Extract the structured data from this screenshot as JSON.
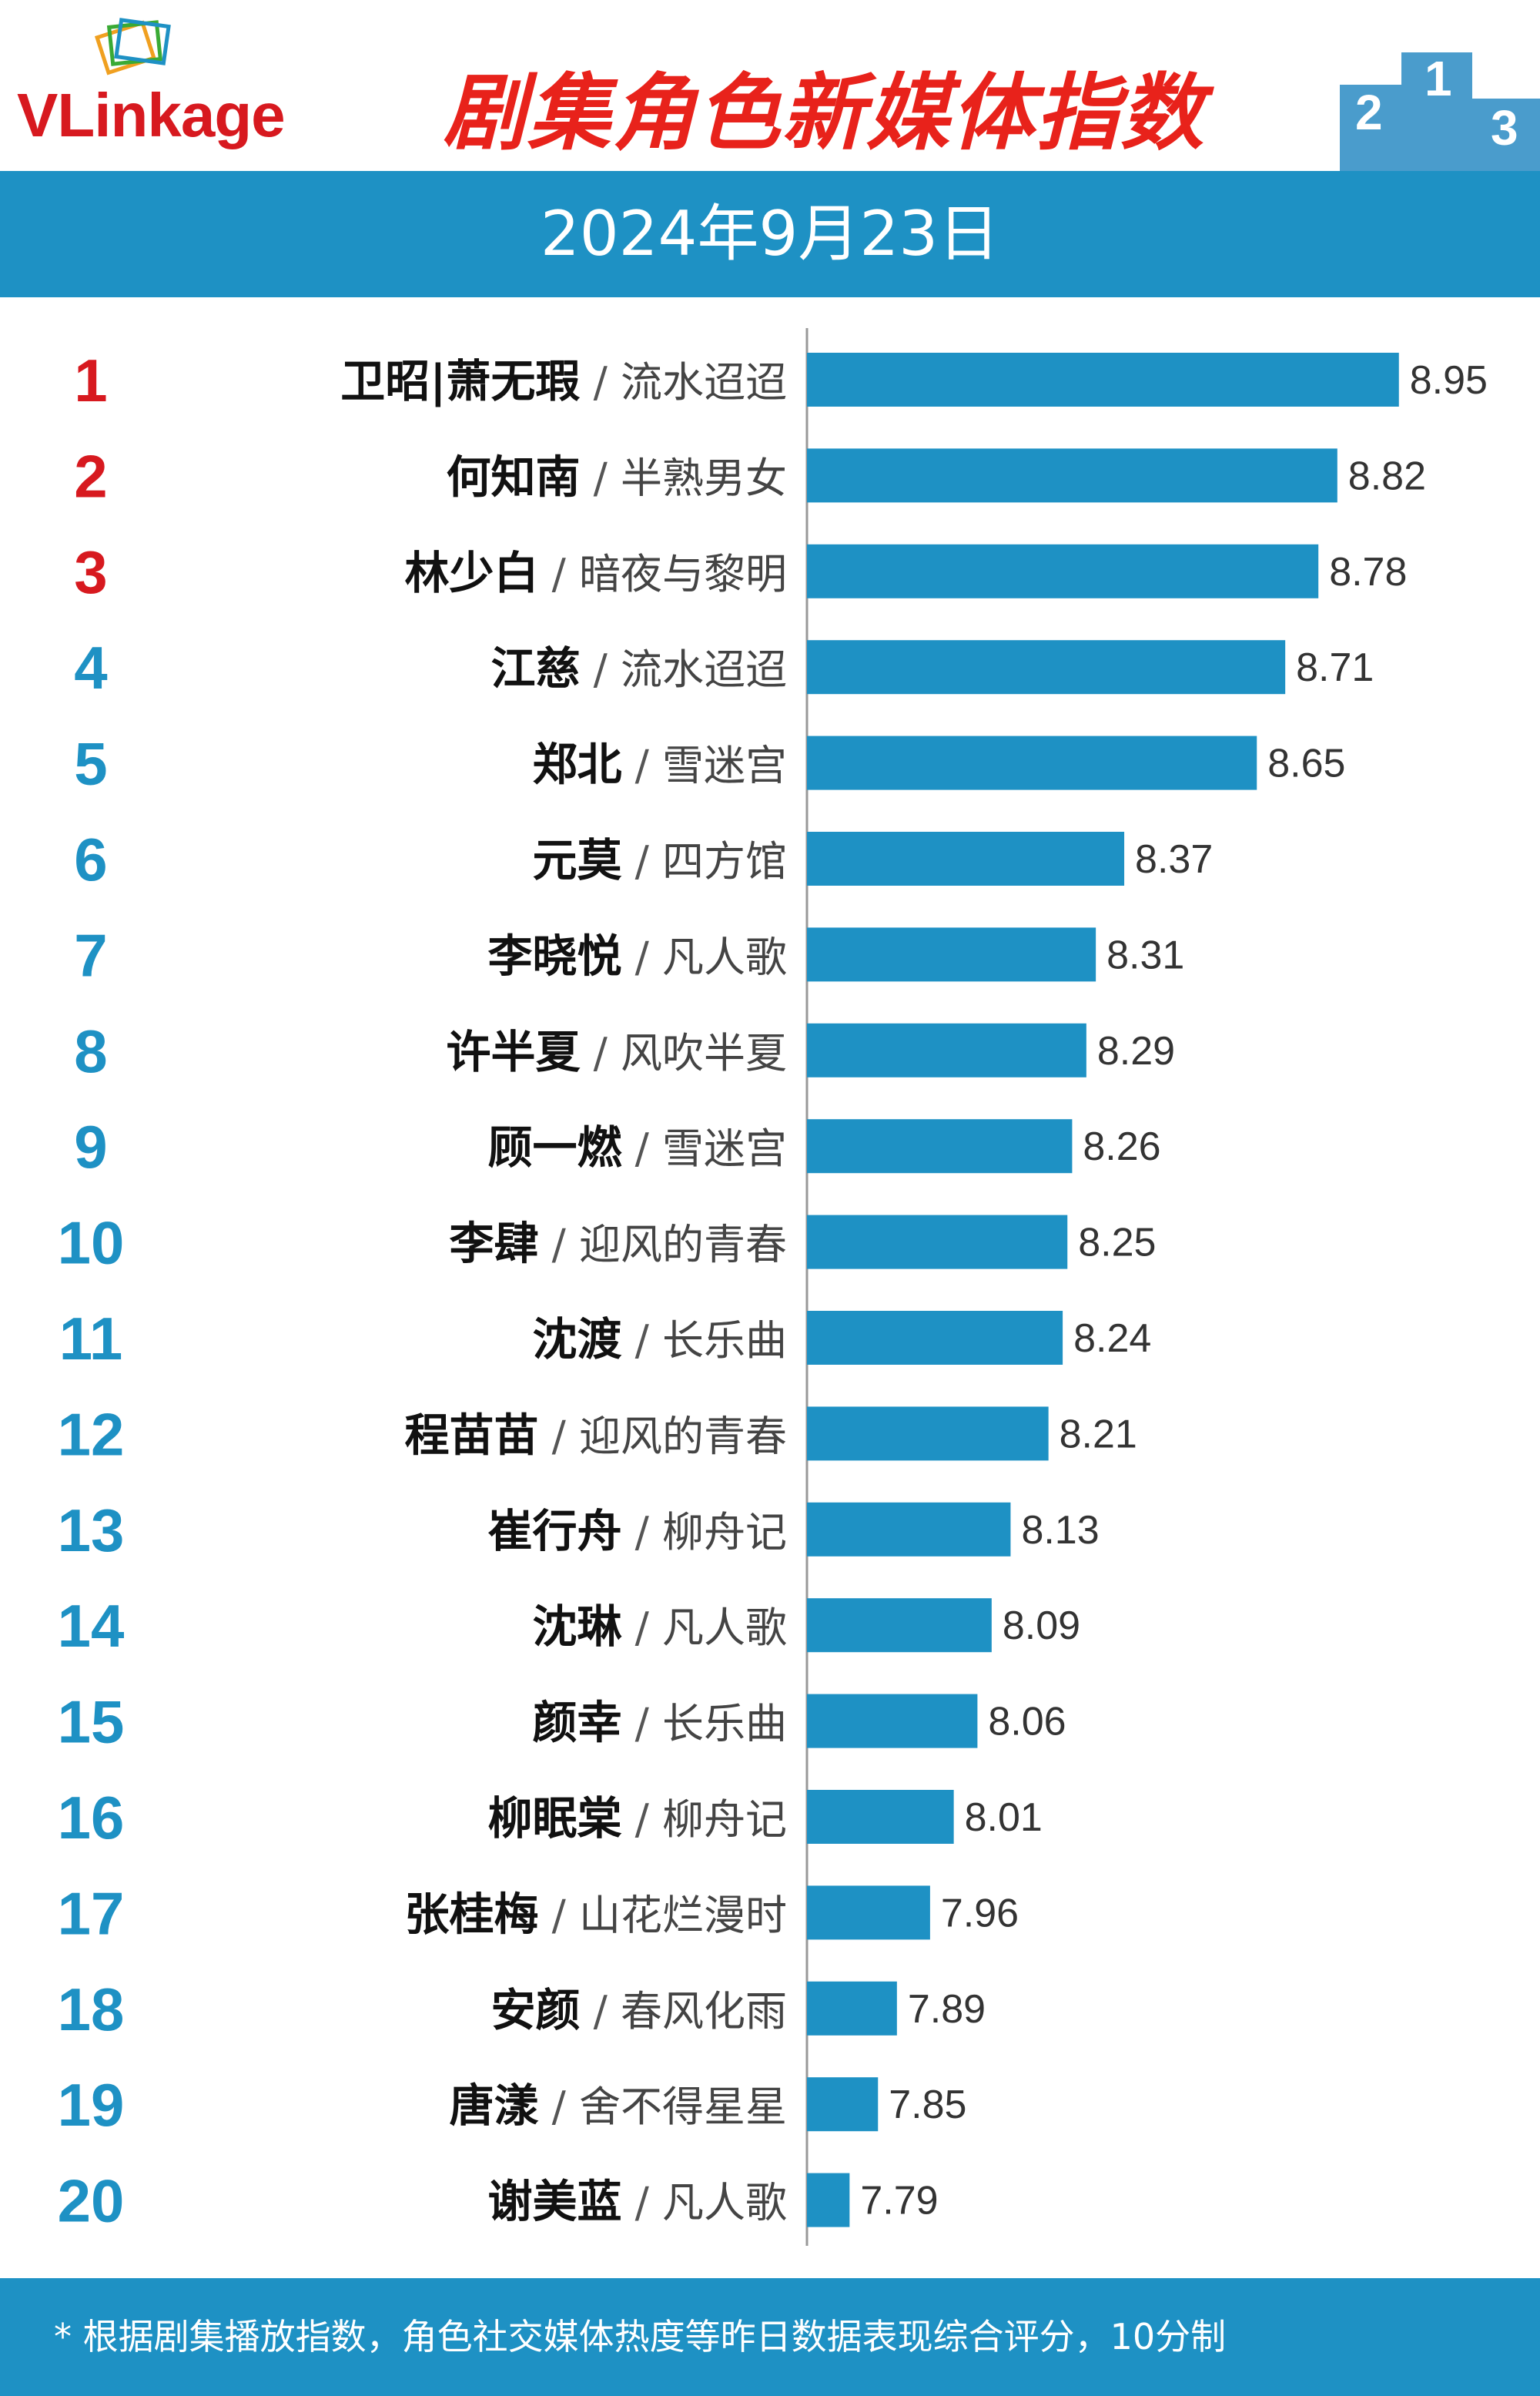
{
  "header": {
    "logo_text_vl": "VL",
    "logo_text_rest": "inkage",
    "title": "剧集角色新媒体指数",
    "podium_labels": [
      "2",
      "1",
      "3"
    ]
  },
  "date": "2024年9月23日",
  "footer": {
    "note": "* 根据剧集播放指数，角色社交媒体热度等昨日数据表现综合评分，10分制"
  },
  "colors": {
    "bar": "#1e91c4",
    "rank_top3": "#d7191f",
    "rank_other": "#1e91c4",
    "title": "#e8221b"
  },
  "chart_data": {
    "type": "bar",
    "orientation": "horizontal",
    "title": "剧集角色新媒体指数",
    "categories": [
      "卫昭|萧无瑕",
      "何知南",
      "林少白",
      "江慈",
      "郑北",
      "元莫",
      "李晓悦",
      "许半夏",
      "顾一燃",
      "李肆",
      "沈渡",
      "程苗苗",
      "崔行舟",
      "沈琳",
      "颜幸",
      "柳眠棠",
      "张桂梅",
      "安颜",
      "唐漾",
      "谢美蓝"
    ],
    "dramas": [
      "流水迢迢",
      "半熟男女",
      "暗夜与黎明",
      "流水迢迢",
      "雪迷宫",
      "四方馆",
      "凡人歌",
      "风吹半夏",
      "雪迷宫",
      "迎风的青春",
      "长乐曲",
      "迎风的青春",
      "柳舟记",
      "凡人歌",
      "长乐曲",
      "柳舟记",
      "山花烂漫时",
      "春风化雨",
      "舍不得星星",
      "凡人歌"
    ],
    "ranks": [
      1,
      2,
      3,
      4,
      5,
      6,
      7,
      8,
      9,
      10,
      11,
      12,
      13,
      14,
      15,
      16,
      17,
      18,
      19,
      20
    ],
    "values": [
      8.95,
      8.82,
      8.78,
      8.71,
      8.65,
      8.37,
      8.31,
      8.29,
      8.26,
      8.25,
      8.24,
      8.21,
      8.13,
      8.09,
      8.06,
      8.01,
      7.96,
      7.89,
      7.85,
      7.79
    ],
    "value_labels": [
      "8.95",
      "8.82",
      "8.78",
      "8.71",
      "8.65",
      "8.37",
      "8.31",
      "8.29",
      "8.26",
      "8.25",
      "8.24",
      "8.21",
      "8.13",
      "8.09",
      "8.06",
      "8.01",
      "7.96",
      "7.89",
      "7.85",
      "7.79"
    ],
    "separator": "/",
    "xlim": [
      7.7,
      8.95
    ],
    "grid": false,
    "legend": "none"
  }
}
